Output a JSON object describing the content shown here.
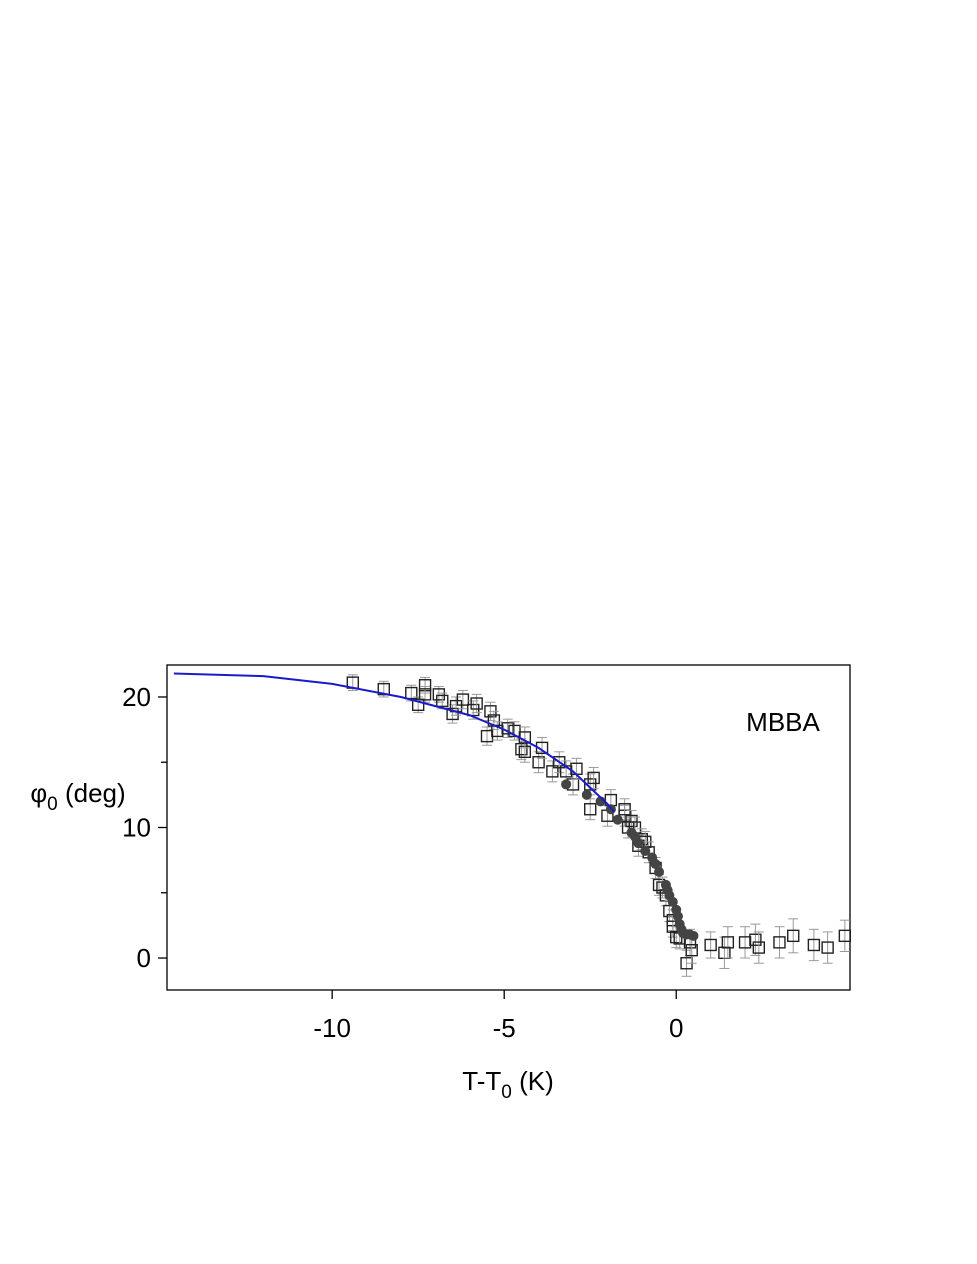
{
  "chart_data": {
    "type": "scatter",
    "annotation": "MBBA",
    "xlabel": {
      "main": "T-T",
      "sub": "0",
      "rest": " (K)"
    },
    "ylabel": {
      "main": "φ",
      "sub": "0",
      "rest": " (deg)"
    },
    "xlim": [
      -14.8,
      5.05
    ],
    "ylim": [
      -2.45,
      22.45
    ],
    "xticks": [
      -10,
      -5,
      0
    ],
    "yticks": [
      0,
      10,
      20
    ],
    "yminorticks": [
      5,
      15
    ],
    "errorbar_color": "#999999",
    "series": [
      {
        "marker": "square",
        "color": "#222222",
        "x": [
          -9.4,
          -8.5,
          -7.7,
          -7.5,
          -7.3,
          -7.3,
          -6.9,
          -6.8,
          -6.5,
          -6.4,
          -6.2,
          -5.9,
          -5.8,
          -5.5,
          -5.4,
          -5.3,
          -5.2,
          -4.9,
          -4.7,
          -4.5,
          -4.4,
          -4.4,
          -4.0,
          -3.9,
          -3.6,
          -3.4,
          -3.2,
          -3.0,
          -2.9,
          -2.5,
          -2.5,
          -2.4,
          -2.0,
          -1.9,
          -1.5,
          -1.5,
          -1.4,
          -1.3,
          -1.2,
          -1.1,
          -1.0,
          -0.9,
          -0.8,
          -0.6,
          -0.5,
          -0.4,
          -0.3,
          -0.2,
          -0.1,
          -0.1,
          0.0,
          0.1,
          0.3,
          0.4,
          0.45,
          1.0,
          1.4,
          1.5,
          2.0,
          2.3,
          2.4,
          3.0,
          3.4,
          4.0,
          4.4,
          4.9
        ],
        "values": [
          21.1,
          20.6,
          20.3,
          19.4,
          20.9,
          20.2,
          20.2,
          19.7,
          18.7,
          19.3,
          19.8,
          19.0,
          19.5,
          17.0,
          18.9,
          18.2,
          17.4,
          17.6,
          17.4,
          16.0,
          15.8,
          16.9,
          15.0,
          16.1,
          14.3,
          15.0,
          14.3,
          13.3,
          14.5,
          11.4,
          13.3,
          13.8,
          10.9,
          12.1,
          10.9,
          11.4,
          10.0,
          10.5,
          10.0,
          8.6,
          9.1,
          8.9,
          8.1,
          6.9,
          5.6,
          5.4,
          4.8,
          3.6,
          2.9,
          2.4,
          1.6,
          1.5,
          -0.4,
          1.2,
          0.6,
          1.0,
          0.4,
          1.2,
          1.2,
          1.4,
          0.8,
          1.2,
          1.7,
          1.0,
          0.8,
          1.7
        ],
        "errors": [
          0.6,
          0.6,
          0.6,
          0.6,
          0.6,
          0.6,
          0.6,
          0.6,
          0.7,
          0.7,
          0.7,
          0.7,
          0.7,
          0.7,
          0.7,
          0.7,
          0.7,
          0.7,
          0.7,
          0.8,
          0.8,
          0.8,
          0.8,
          0.8,
          0.8,
          0.8,
          0.8,
          0.8,
          0.8,
          0.8,
          0.8,
          0.8,
          0.8,
          0.8,
          0.8,
          0.8,
          0.8,
          0.8,
          0.8,
          0.8,
          0.8,
          0.8,
          0.8,
          0.8,
          0.8,
          0.8,
          0.8,
          0.8,
          0.8,
          0.8,
          0.8,
          0.8,
          1.0,
          1.0,
          1.0,
          1.0,
          1.2,
          1.2,
          1.2,
          1.2,
          1.2,
          1.2,
          1.3,
          1.2,
          1.2,
          1.2
        ]
      },
      {
        "marker": "circle",
        "color": "#444444",
        "x": [
          -3.2,
          -2.6,
          -2.2,
          -1.9,
          -1.7,
          -1.3,
          -1.2,
          -1.1,
          -0.9,
          -0.7,
          -0.6,
          -0.5,
          -0.3,
          -0.25,
          -0.2,
          -0.1,
          0.0,
          0.05,
          0.1,
          0.15,
          0.2,
          0.3,
          0.4,
          0.5
        ],
        "values": [
          13.3,
          12.5,
          12.0,
          11.4,
          10.6,
          9.6,
          9.3,
          8.8,
          8.2,
          7.7,
          7.2,
          6.6,
          5.6,
          5.2,
          4.8,
          4.3,
          3.7,
          3.2,
          2.6,
          2.2,
          1.9,
          1.8,
          1.8,
          1.7
        ]
      },
      {
        "marker": "line",
        "color": "#1a1acc",
        "x": [
          -14.6,
          -12,
          -10,
          -8,
          -6,
          -5,
          -4,
          -3,
          -2,
          -1.8
        ],
        "values": [
          21.8,
          21.6,
          21.0,
          20.0,
          18.6,
          17.5,
          16.1,
          14.3,
          11.8,
          11.2
        ]
      }
    ]
  }
}
